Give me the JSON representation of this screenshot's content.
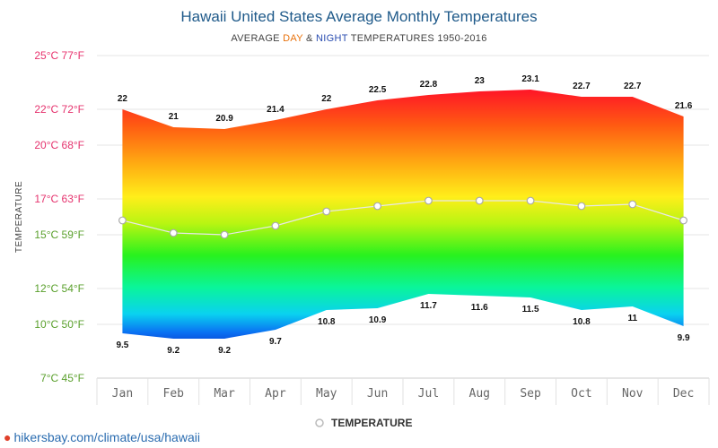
{
  "chart_data": {
    "type": "area",
    "title": "Hawaii United States Average Monthly Temperatures",
    "subtitle": {
      "prefix": "AVERAGE ",
      "day": "DAY",
      "middle": " & ",
      "night": "NIGHT",
      "suffix": " TEMPERATURES 1950-2016"
    },
    "ylabel": "TEMPERATURE",
    "ylim": [
      7,
      25
    ],
    "y_ticks": [
      {
        "value": 25,
        "label": "25°C 77°F",
        "color": "#e8336e"
      },
      {
        "value": 22,
        "label": "22°C 72°F",
        "color": "#e5336e"
      },
      {
        "value": 20,
        "label": "20°C 68°F",
        "color": "#e5336e"
      },
      {
        "value": 17,
        "label": "17°C 63°F",
        "color": "#e5336e"
      },
      {
        "value": 15,
        "label": "15°C 59°F",
        "color": "#5aa02c"
      },
      {
        "value": 12,
        "label": "12°C 54°F",
        "color": "#5aa02c"
      },
      {
        "value": 10,
        "label": "10°C 50°F",
        "color": "#5aa02c"
      },
      {
        "value": 7,
        "label": "7°C 45°F",
        "color": "#5aa02c"
      }
    ],
    "categories": [
      "Jan",
      "Feb",
      "Mar",
      "Apr",
      "May",
      "Jun",
      "Jul",
      "Aug",
      "Sep",
      "Oct",
      "Nov",
      "Dec"
    ],
    "series": [
      {
        "name": "Day",
        "values": [
          22,
          21,
          20.9,
          21.4,
          22,
          22.5,
          22.8,
          23,
          23.1,
          22.7,
          22.7,
          21.6
        ]
      },
      {
        "name": "Night",
        "values": [
          9.5,
          9.2,
          9.2,
          9.7,
          10.8,
          10.9,
          11.7,
          11.6,
          11.5,
          10.8,
          11,
          9.9
        ]
      },
      {
        "name": "Temperature",
        "values": [
          15.8,
          15.1,
          15.0,
          15.5,
          16.3,
          16.6,
          16.9,
          16.9,
          16.9,
          16.6,
          16.7,
          15.8
        ]
      }
    ],
    "legend": {
      "label": "TEMPERATURE",
      "position": "bottom-center"
    },
    "grid": true
  },
  "colors": {
    "day": "#e8720c",
    "night": "#2a4db0",
    "title": "#1f5a8a",
    "line": "#e8e8e8",
    "grid": "#e6e6e6"
  },
  "footer": {
    "pin_icon": "location-pin-icon",
    "url": "hikersbay.com/climate/usa/hawaii"
  }
}
